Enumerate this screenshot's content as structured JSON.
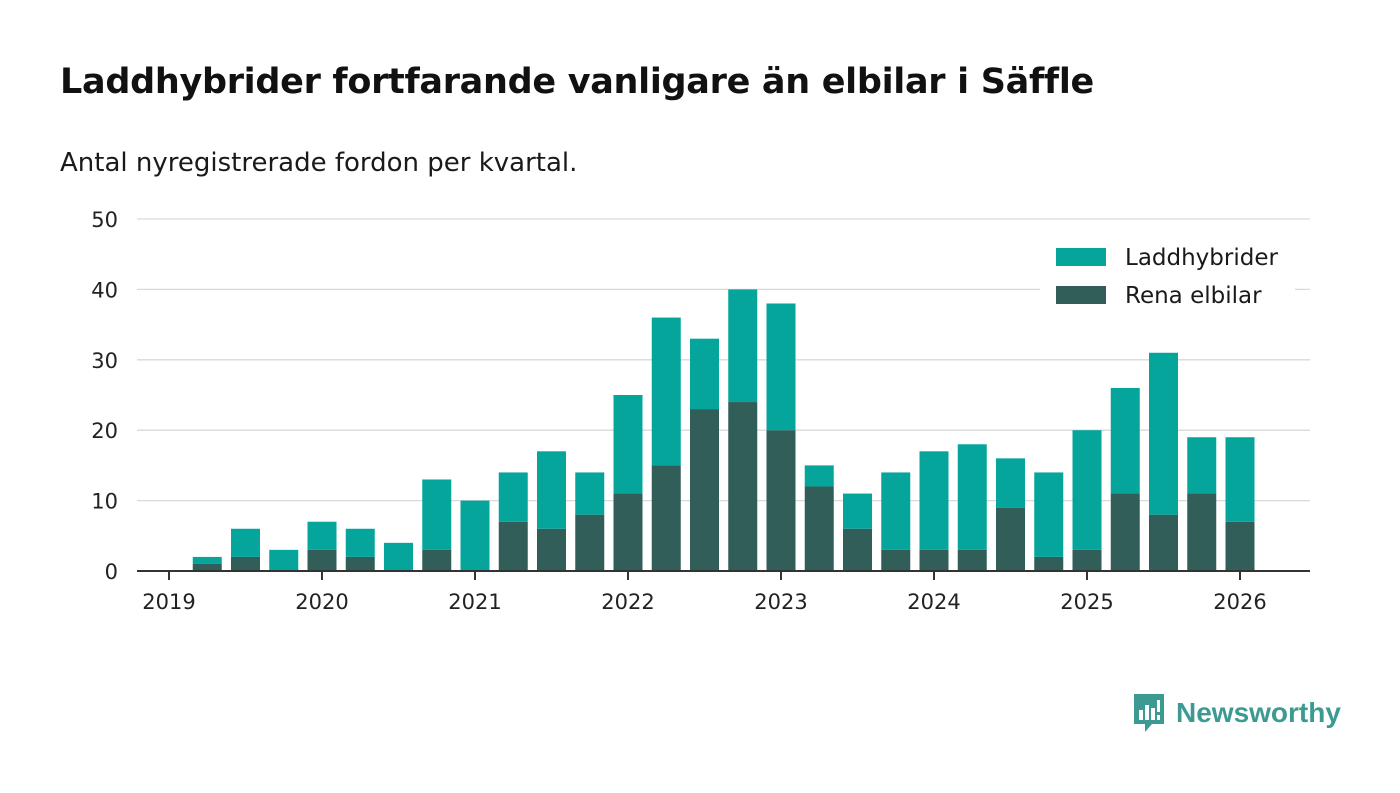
{
  "header": {
    "title": "Laddhybrider fortfarande vanligare än elbilar i Säffle",
    "subtitle": "Antal nyregistrerade fordon per kvartal."
  },
  "brand": {
    "name": "Newsworthy",
    "icon": "newsworthy-logo-icon"
  },
  "colors": {
    "phev": "#05a59c",
    "bev": "#325e5a",
    "grid": "#d9d9d9",
    "axis": "#333333",
    "brand": "#3c9a93"
  },
  "chart_data": {
    "type": "bar",
    "stacked": true,
    "title": "Laddhybrider fortfarande vanligare än elbilar i Säffle",
    "subtitle": "Antal nyregistrerade fordon per kvartal.",
    "xlabel": "",
    "ylabel": "",
    "ylim": [
      0,
      50
    ],
    "yticks": [
      0,
      10,
      20,
      30,
      40,
      50
    ],
    "xticks": [
      "2019",
      "2020",
      "2021",
      "2022",
      "2023",
      "2024",
      "2025",
      "2026"
    ],
    "grid": true,
    "legend_position": "top-right",
    "categories": [
      "2019 Q2",
      "2019 Q3",
      "2019 Q4",
      "2020 Q1",
      "2020 Q2",
      "2020 Q3",
      "2020 Q4",
      "2021 Q1",
      "2021 Q2",
      "2021 Q3",
      "2021 Q4",
      "2022 Q1",
      "2022 Q2",
      "2022 Q3",
      "2022 Q4",
      "2023 Q1",
      "2023 Q2",
      "2023 Q3",
      "2023 Q4",
      "2024 Q1",
      "2024 Q2",
      "2024 Q3",
      "2024 Q4",
      "2025 Q1",
      "2025 Q2",
      "2025 Q3",
      "2025 Q4",
      "2026 Q1"
    ],
    "series": [
      {
        "name": "Laddhybrider",
        "values": [
          1,
          4,
          3,
          4,
          4,
          4,
          10,
          10,
          7,
          11,
          6,
          14,
          21,
          10,
          16,
          18,
          3,
          5,
          11,
          14,
          15,
          7,
          12,
          17,
          15,
          23,
          8,
          12
        ]
      },
      {
        "name": "Rena elbilar",
        "values": [
          1,
          2,
          0,
          3,
          2,
          0,
          3,
          0,
          7,
          6,
          8,
          11,
          15,
          23,
          24,
          20,
          12,
          6,
          3,
          3,
          3,
          9,
          2,
          3,
          11,
          8,
          11,
          7
        ]
      }
    ]
  }
}
